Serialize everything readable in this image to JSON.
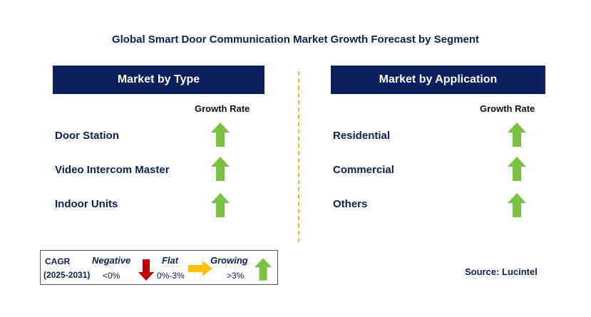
{
  "title": "Global Smart Door Communication Market Growth Forecast by Segment",
  "left_panel": {
    "header": "Market by Type",
    "growth_label": "Growth Rate",
    "items": [
      {
        "label": "Door Station",
        "trend": "growing"
      },
      {
        "label": "Video Intercom Master",
        "trend": "growing"
      },
      {
        "label": "Indoor Units",
        "trend": "growing"
      }
    ]
  },
  "right_panel": {
    "header": "Market by Application",
    "growth_label": "Growth Rate",
    "items": [
      {
        "label": "Residential",
        "trend": "growing"
      },
      {
        "label": "Commercial",
        "trend": "growing"
      },
      {
        "label": "Others",
        "trend": "growing"
      }
    ]
  },
  "legend": {
    "cagr_label": "CAGR",
    "period": "(2025-2031)",
    "negative_label": "Negative",
    "negative_range": "<0%",
    "flat_label": "Flat",
    "flat_range": "0%-3%",
    "growing_label": "Growing",
    "growing_range": ">3%"
  },
  "source": "Source: Lucintel",
  "colors": {
    "header_bg": "#0d1f5c",
    "growing": "#7ac143",
    "negative": "#c00000",
    "flat": "#ffc000",
    "divider": "#f2b233"
  }
}
